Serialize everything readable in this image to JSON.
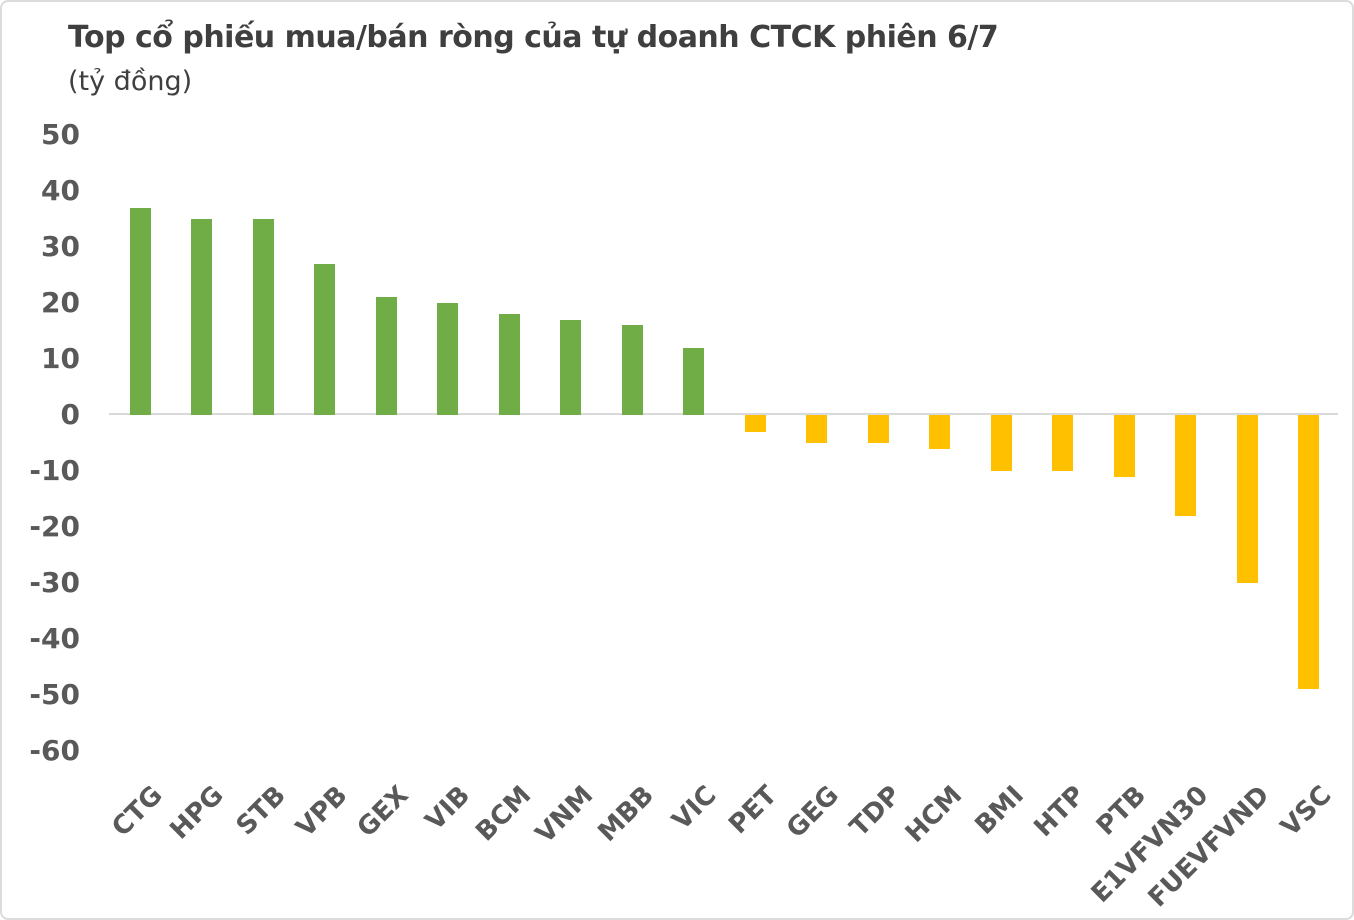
{
  "chart_data": {
    "type": "bar",
    "title": "Top cổ phiếu mua/bán ròng của tự doanh CTCK phiên 6/7",
    "subtitle": "(tỷ đồng)",
    "xlabel": "",
    "ylabel": "(tỷ đồng)",
    "categories": [
      "CTG",
      "HPG",
      "STB",
      "VPB",
      "GEX",
      "VIB",
      "BCM",
      "VNM",
      "MBB",
      "VIC",
      "PET",
      "GEG",
      "TDP",
      "HCM",
      "BMI",
      "HTP",
      "PTB",
      "E1VFVN30",
      "FUEVFVND",
      "VSC"
    ],
    "values": [
      37,
      35,
      35,
      27,
      21,
      20,
      18,
      17,
      16,
      12,
      -3,
      -5,
      -5,
      -6,
      -10,
      -10,
      -11,
      -18,
      -30,
      -49
    ],
    "yticks": [
      50,
      40,
      30,
      20,
      10,
      0,
      -10,
      -20,
      -30,
      -40,
      -50,
      -60
    ],
    "ylim": [
      -60,
      50
    ],
    "grid": false,
    "legend": "none",
    "colors": {
      "positive": "#70AD47",
      "negative": "#FFC000",
      "axis_line": "#D9D9D9",
      "title_text": "#3F3F3F",
      "tick_text": "#595959",
      "background": "#FFFFFF"
    }
  }
}
